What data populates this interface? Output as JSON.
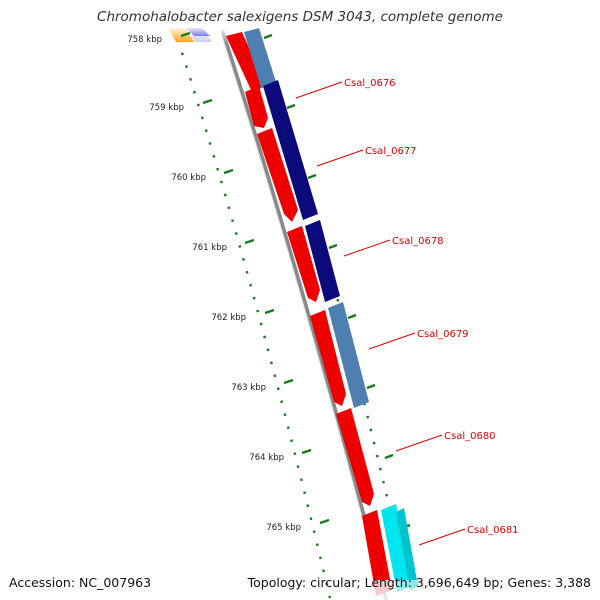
{
  "title": "Chromohalobacter salexigens DSM 3043, complete genome",
  "footer": {
    "accession": "Accession: NC_007963",
    "summary": "Topology: circular; Length: 3,696,649 bp; Genes: 3,388"
  },
  "ticks": [
    "758 kbp",
    "759 kbp",
    "760 kbp",
    "761 kbp",
    "762 kbp",
    "763 kbp",
    "764 kbp",
    "765 kbp"
  ],
  "genes": [
    "Csal_0676",
    "Csal_0677",
    "Csal_0678",
    "Csal_0679",
    "Csal_0680",
    "Csal_0681"
  ],
  "colors": {
    "cds": "#ee0000",
    "label": "#dd0000",
    "backbone": "#888888",
    "tick": "#1a7a1a",
    "navy": "#0a0a7a",
    "steel": "#4f7fb0",
    "cyan": "#00e5ee",
    "orange": "#ff9a00",
    "blue": "#1010dd"
  }
}
